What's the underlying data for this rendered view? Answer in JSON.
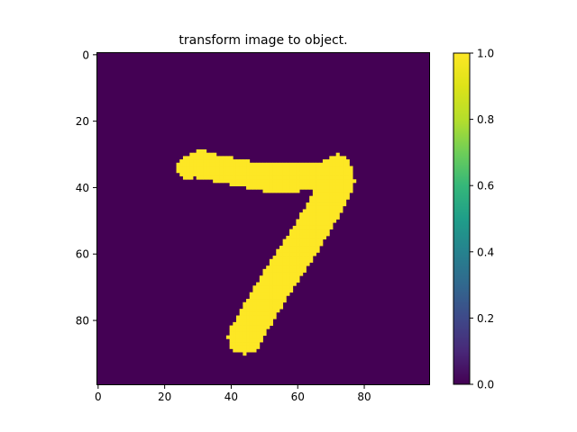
{
  "chart_data": {
    "type": "heatmap",
    "title": "transform image to object.",
    "xlabel": "",
    "ylabel": "",
    "xlim": [
      -0.5,
      99.5
    ],
    "ylim": [
      99.5,
      -0.5
    ],
    "x_ticks": [
      0,
      20,
      40,
      60,
      80
    ],
    "y_ticks": [
      0,
      20,
      40,
      60,
      80
    ],
    "grid": false,
    "colormap": "viridis",
    "colors": {
      "low": "#440154",
      "high": "#fde725"
    },
    "value_range": [
      0.0,
      1.0
    ],
    "colorbar": {
      "ticks": [
        0.0,
        0.2,
        0.4,
        0.6,
        0.8,
        1.0
      ],
      "tick_labels": [
        "0.0",
        "0.2",
        "0.4",
        "0.6",
        "0.8",
        "1.0"
      ]
    },
    "grid_size": [
      100,
      100
    ],
    "background_value": 0,
    "foreground_value": 1,
    "foreground_description": "handwritten digit seven",
    "foreground_strokes": [
      {
        "points": [
          [
            30,
            33
          ],
          [
            40,
            35
          ],
          [
            50,
            37
          ],
          [
            60,
            37
          ],
          [
            68,
            36
          ],
          [
            72,
            34
          ]
        ],
        "half_width": 4
      },
      {
        "points": [
          [
            72,
            38
          ],
          [
            68,
            46
          ],
          [
            62,
            56
          ],
          [
            54,
            68
          ],
          [
            48,
            78
          ],
          [
            44,
            85
          ]
        ],
        "half_width": 5
      },
      {
        "points": [
          [
            27,
            34
          ],
          [
            31,
            32
          ]
        ],
        "half_width": 3.5
      }
    ]
  }
}
